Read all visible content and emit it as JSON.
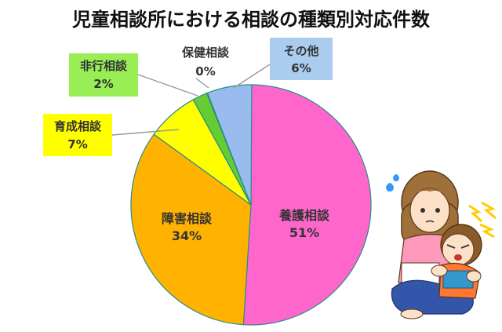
{
  "chart_data": {
    "type": "pie",
    "title": "児童相談所における相談の種類別対応件数",
    "slices": [
      {
        "label": "養護相談",
        "value": 51,
        "value_label": "51%",
        "color": "#ff66cc"
      },
      {
        "label": "障害相談",
        "value": 34,
        "value_label": "34%",
        "color": "#ffb300"
      },
      {
        "label": "育成相談",
        "value": 7,
        "value_label": "7%",
        "color": "#ffff00"
      },
      {
        "label": "非行相談",
        "value": 2,
        "value_label": "2%",
        "color": "#66cc33"
      },
      {
        "label": "保健相談",
        "value": 0,
        "value_label": "0%",
        "color": "#00cccc"
      },
      {
        "label": "その他",
        "value": 6,
        "value_label": "6%",
        "color": "#99bbee"
      }
    ],
    "legend": "callouts",
    "start": "top",
    "direction": "clockwise"
  },
  "colors": {
    "callout_yellow": "#ffff00",
    "callout_green": "#99ee55",
    "callout_blue": "#aaccee",
    "pie_stroke": "#2a8a8a"
  }
}
